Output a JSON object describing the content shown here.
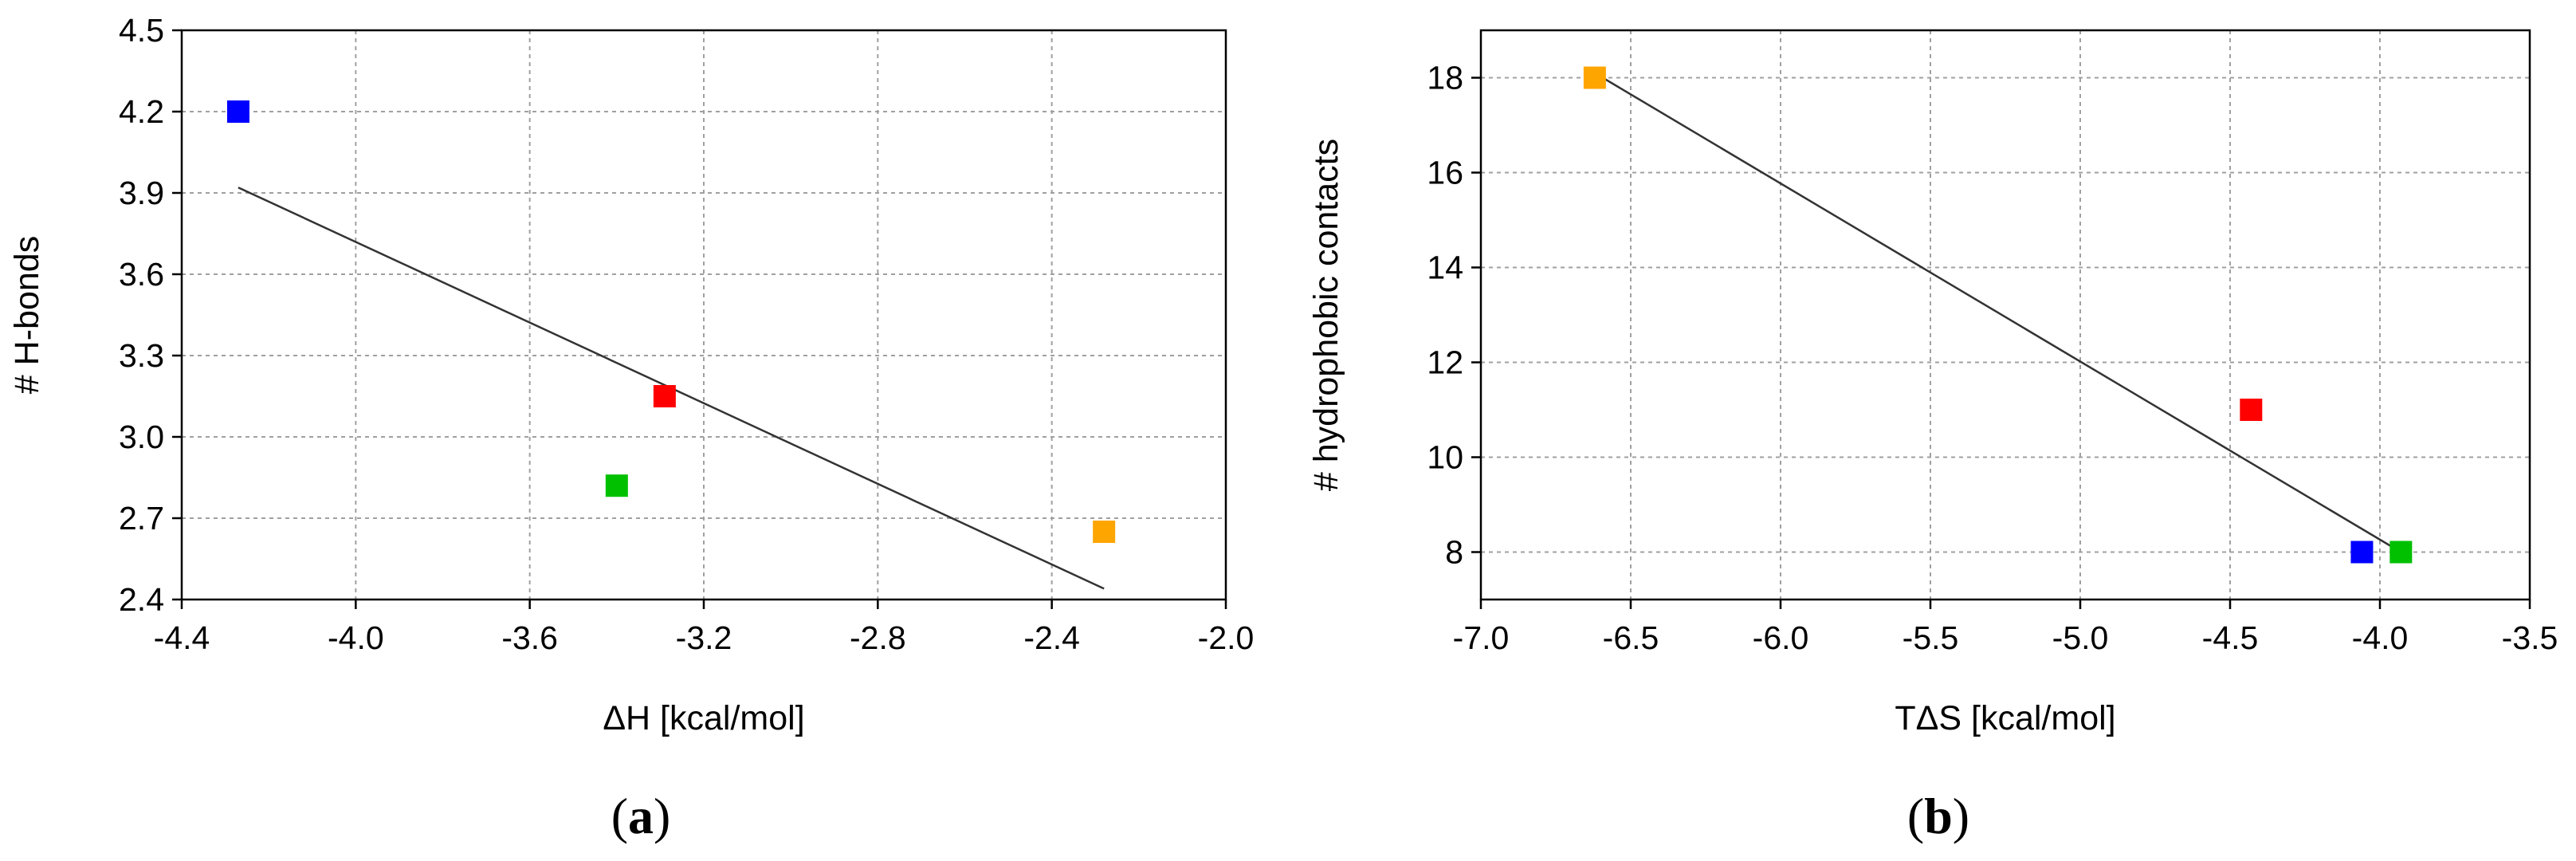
{
  "chart_data": [
    {
      "type": "scatter",
      "panel_label": {
        "open": "(",
        "letter": "a",
        "close": ")"
      },
      "xlabel": "ΔH [kcal/mol]",
      "ylabel": "# H-bonds",
      "xlim": [
        -4.4,
        -2.0
      ],
      "ylim": [
        2.4,
        4.5
      ],
      "xticks": [
        "-4.4",
        "-4.0",
        "-3.6",
        "-3.2",
        "-2.8",
        "-2.4",
        "-2.0"
      ],
      "yticks": [
        "2.4",
        "2.7",
        "3.0",
        "3.3",
        "3.6",
        "3.9",
        "4.2",
        "4.5"
      ],
      "grid": true,
      "points": [
        {
          "x": -4.27,
          "y": 4.2,
          "color": "#0000ff"
        },
        {
          "x": -3.29,
          "y": 3.15,
          "color": "#ff0000"
        },
        {
          "x": -3.4,
          "y": 2.82,
          "color": "#00c000"
        },
        {
          "x": -2.28,
          "y": 2.65,
          "color": "#ffa500"
        }
      ],
      "trendline": {
        "x": [
          -4.27,
          -2.28
        ],
        "y": [
          3.92,
          2.44
        ],
        "color": "#333333"
      }
    },
    {
      "type": "scatter",
      "panel_label": {
        "open": "(",
        "letter": "b",
        "close": ")"
      },
      "xlabel": "TΔS [kcal/mol]",
      "ylabel": "# hydrophobic contacts",
      "xlim": [
        -7.0,
        -3.5
      ],
      "ylim": [
        7,
        19
      ],
      "xticks": [
        "-7.0",
        "-6.5",
        "-6.0",
        "-5.5",
        "-5.0",
        "-4.5",
        "-4.0",
        "-3.5"
      ],
      "yticks": [
        "8",
        "10",
        "12",
        "14",
        "16",
        "18"
      ],
      "grid": true,
      "points": [
        {
          "x": -6.62,
          "y": 18,
          "color": "#ffa500"
        },
        {
          "x": -4.43,
          "y": 11,
          "color": "#ff0000"
        },
        {
          "x": -4.06,
          "y": 8,
          "color": "#0000ff"
        },
        {
          "x": -3.93,
          "y": 8,
          "color": "#00c000"
        }
      ],
      "trendline": {
        "x": [
          -6.62,
          -3.93
        ],
        "y": [
          18.1,
          8.0
        ],
        "color": "#333333"
      }
    }
  ]
}
